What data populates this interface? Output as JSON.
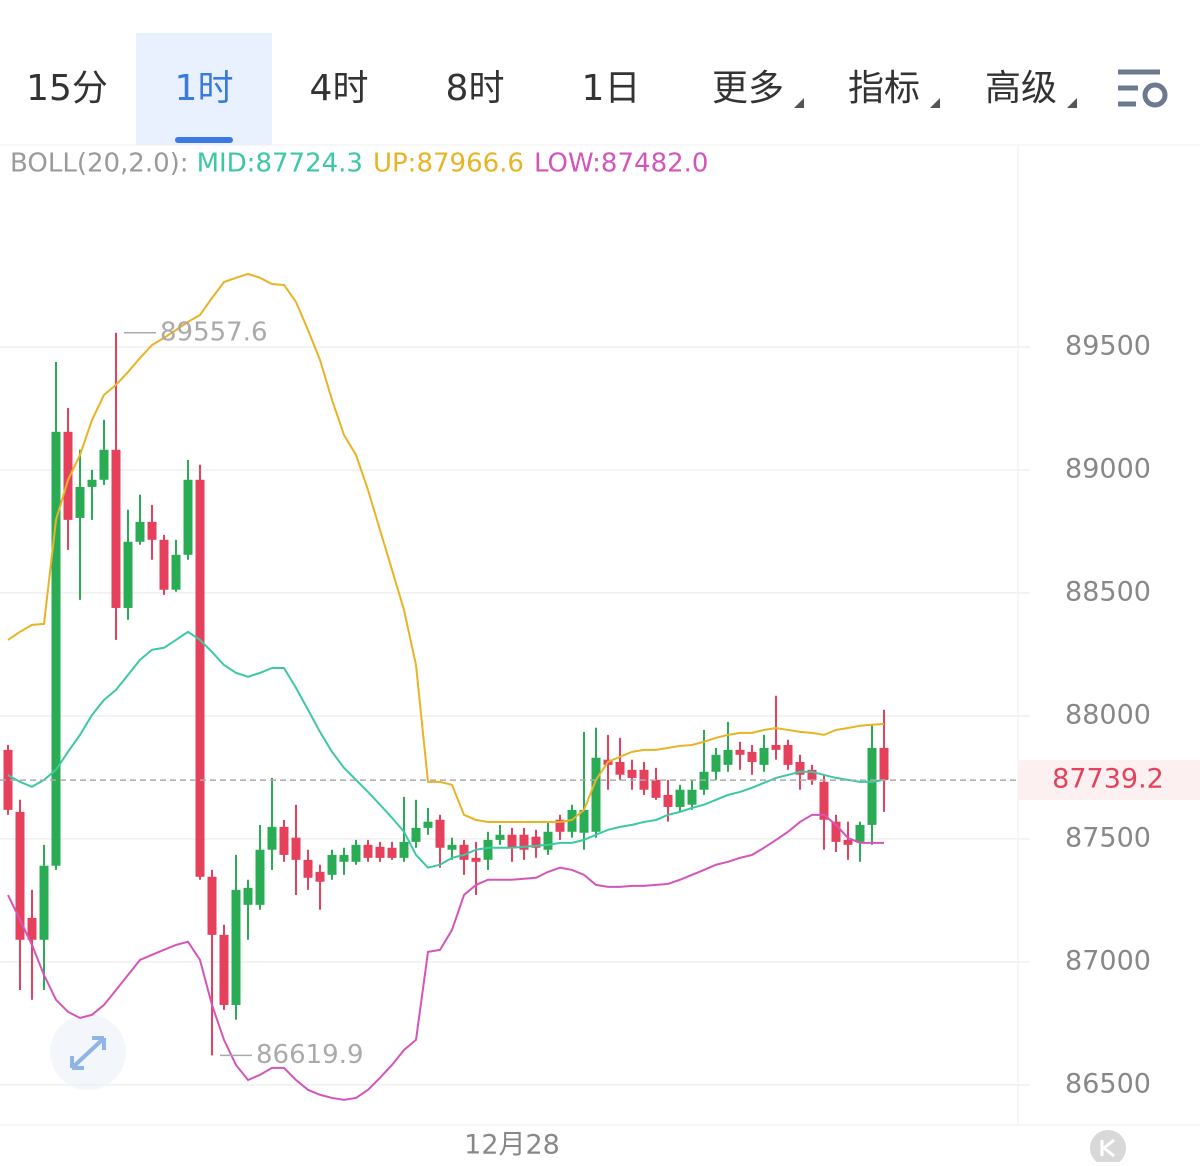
{
  "tabs": {
    "items": [
      "15分",
      "1时",
      "4时",
      "8时",
      "1日",
      "更多",
      "指标",
      "高级"
    ],
    "active": 1
  },
  "chart_data": {
    "type": "candlestick",
    "indicator": {
      "label": "BOLL(20,2.0):",
      "mid": "MID:87724.3",
      "up": "UP:87966.6",
      "low": "LOW:87482.0"
    },
    "categories": [
      null,
      null,
      null,
      null,
      null,
      null,
      null,
      null,
      null,
      null,
      null,
      null,
      null,
      null,
      null,
      null,
      null,
      null,
      null,
      null,
      null,
      null,
      null,
      null,
      null,
      null,
      null,
      null,
      null,
      null,
      null,
      null,
      null,
      null,
      null,
      null,
      null,
      null,
      null,
      null,
      null,
      null,
      "12月28",
      null,
      null,
      null,
      null,
      null,
      null,
      null,
      null,
      null,
      null,
      null,
      null,
      null,
      null,
      null,
      null,
      null,
      null,
      null,
      null,
      null,
      null,
      null,
      null,
      null,
      null,
      null,
      null,
      null,
      null,
      null
    ],
    "open": [
      87862,
      87610,
      87179,
      87090,
      87391,
      89155,
      88805,
      88931,
      88960,
      89082,
      88439,
      88708,
      88789,
      88716,
      88513,
      88655,
      88960,
      87346,
      87110,
      86825,
      87232,
      87232,
      87456,
      87549,
      87505,
      87415,
      87366,
      87354,
      87407,
      87407,
      87476,
      87468,
      87464,
      87423,
      87488,
      87545,
      87578,
      87456,
      87476,
      87423,
      87415,
      87496,
      87517,
      87517,
      87509,
      87456,
      87578,
      87529,
      87525,
      87529,
      87822,
      87813,
      87781,
      87781,
      87740,
      87679,
      87630,
      87639,
      87700,
      87773,
      87801,
      87862,
      87854,
      87801,
      87882,
      87882,
      87813,
      87781,
      87732,
      87570,
      87496,
      87488,
      87557,
      87870
    ],
    "high": [
      87882,
      87659,
      87293,
      87476,
      89439,
      89252,
      89082,
      89000,
      89204,
      89557.6,
      88838,
      88899,
      88858,
      88736,
      88716,
      89041,
      89021,
      87374,
      87151,
      87435,
      87334,
      87557,
      87748,
      87577,
      87639,
      87456,
      87395,
      87456,
      87464,
      87496,
      87496,
      87488,
      87488,
      87671,
      87659,
      87626,
      87598,
      87505,
      87496,
      87488,
      87529,
      87557,
      87545,
      87545,
      87537,
      87570,
      87598,
      87639,
      87935,
      87952,
      87923,
      87911,
      87822,
      87813,
      87789,
      87740,
      87720,
      87740,
      87943,
      87870,
      87976,
      87895,
      87882,
      87923,
      88082,
      87903,
      87842,
      87801,
      87761,
      87598,
      87570,
      87570,
      87964,
      88025
    ],
    "low": [
      87598,
      86886,
      86846,
      86886,
      87374,
      88675,
      88472,
      88797,
      88939,
      88309,
      88391,
      88696,
      88635,
      88492,
      88505,
      88635,
      87334,
      86619.9,
      86805,
      86765,
      87090,
      87212,
      87374,
      87407,
      87272,
      87293,
      87212,
      87334,
      87354,
      87395,
      87407,
      87407,
      87415,
      87407,
      87464,
      87517,
      87383,
      87415,
      87354,
      87272,
      87374,
      87476,
      87407,
      87415,
      87423,
      87435,
      87496,
      87505,
      87456,
      87505,
      87700,
      87740,
      87700,
      87679,
      87659,
      87570,
      87610,
      87618,
      87679,
      87740,
      87773,
      87781,
      87761,
      87773,
      87822,
      87781,
      87700,
      87720,
      87456,
      87447,
      87415,
      87407,
      87476,
      87610
    ],
    "close": [
      87618,
      87090,
      87090,
      87391,
      89155,
      88797,
      88931,
      88960,
      89082,
      88439,
      88708,
      88789,
      88716,
      88513,
      88655,
      88960,
      87346,
      87110,
      86825,
      87293,
      87301,
      87456,
      87549,
      87435,
      87415,
      87342,
      87326,
      87435,
      87435,
      87476,
      87423,
      87423,
      87423,
      87488,
      87545,
      87570,
      87464,
      87476,
      87415,
      87407,
      87496,
      87517,
      87464,
      87456,
      87464,
      87529,
      87529,
      87618,
      87618,
      87830,
      87801,
      87761,
      87748,
      87700,
      87667,
      87630,
      87700,
      87700,
      87773,
      87842,
      87862,
      87842,
      87813,
      87870,
      87862,
      87801,
      87761,
      87740,
      87578,
      87488,
      87476,
      87557,
      87870,
      87739.2
    ],
    "up_color": "#2aac55",
    "down_color": "#e5415c",
    "bands": [
      {
        "color": "#e8b325",
        "values": [
          88309,
          88342,
          88370,
          88374,
          88797,
          88959,
          89061,
          89203,
          89305,
          89346,
          89398,
          89455,
          89508,
          89537,
          89569,
          89602,
          89630,
          89699,
          89764,
          89781,
          89797,
          89781,
          89756,
          89752,
          89683,
          89569,
          89447,
          89285,
          89142,
          89061,
          88919,
          88756,
          88594,
          88431,
          88207,
          87732,
          87732,
          87720,
          87598,
          87577,
          87569,
          87569,
          87569,
          87569,
          87569,
          87569,
          87569,
          87577,
          87618,
          87740,
          87813,
          87834,
          87854,
          87862,
          87862,
          87870,
          87878,
          87882,
          87895,
          87911,
          87923,
          87931,
          87931,
          87943,
          87951,
          87943,
          87935,
          87931,
          87923,
          87943,
          87951,
          87960,
          87964,
          87967
        ]
      },
      {
        "color": "#3cc8a6",
        "values": [
          87760,
          87732,
          87712,
          87740,
          87781,
          87854,
          87923,
          88004,
          88065,
          88106,
          88167,
          88228,
          88269,
          88277,
          88309,
          88342,
          88309,
          88260,
          88207,
          88175,
          88159,
          88175,
          88195,
          88195,
          88114,
          88025,
          87935,
          87854,
          87789,
          87740,
          87691,
          87639,
          87586,
          87529,
          87435,
          87383,
          87395,
          87423,
          87435,
          87456,
          87464,
          87464,
          87464,
          87468,
          87472,
          87476,
          87484,
          87484,
          87496,
          87517,
          87537,
          87549,
          87557,
          87569,
          87577,
          87598,
          87610,
          87626,
          87639,
          87659,
          87679,
          87691,
          87708,
          87728,
          87748,
          87760,
          87773,
          87773,
          87760,
          87748,
          87740,
          87732,
          87732,
          87740
        ]
      },
      {
        "color": "#d455b9",
        "values": [
          87272,
          87171,
          87069,
          86947,
          86846,
          86797,
          86772,
          86785,
          86825,
          86886,
          86947,
          87008,
          87029,
          87049,
          87069,
          87082,
          87008,
          86825,
          86683,
          86581,
          86520,
          86541,
          86569,
          86569,
          86520,
          86480,
          86460,
          86447,
          86439,
          86447,
          86480,
          86529,
          86581,
          86642,
          86683,
          87041,
          87049,
          87130,
          87272,
          87313,
          87334,
          87334,
          87334,
          87338,
          87342,
          87366,
          87383,
          87374,
          87354,
          87313,
          87305,
          87305,
          87309,
          87309,
          87313,
          87317,
          87334,
          87354,
          87374,
          87395,
          87407,
          87423,
          87435,
          87464,
          87496,
          87529,
          87569,
          87598,
          87598,
          87557,
          87504,
          87484,
          87484,
          87484
        ]
      }
    ],
    "ylim": [
      86337,
      90321
    ],
    "yticks": [
      86500,
      87000,
      87500,
      88000,
      88500,
      89000,
      89500
    ],
    "grid": true
  }
}
